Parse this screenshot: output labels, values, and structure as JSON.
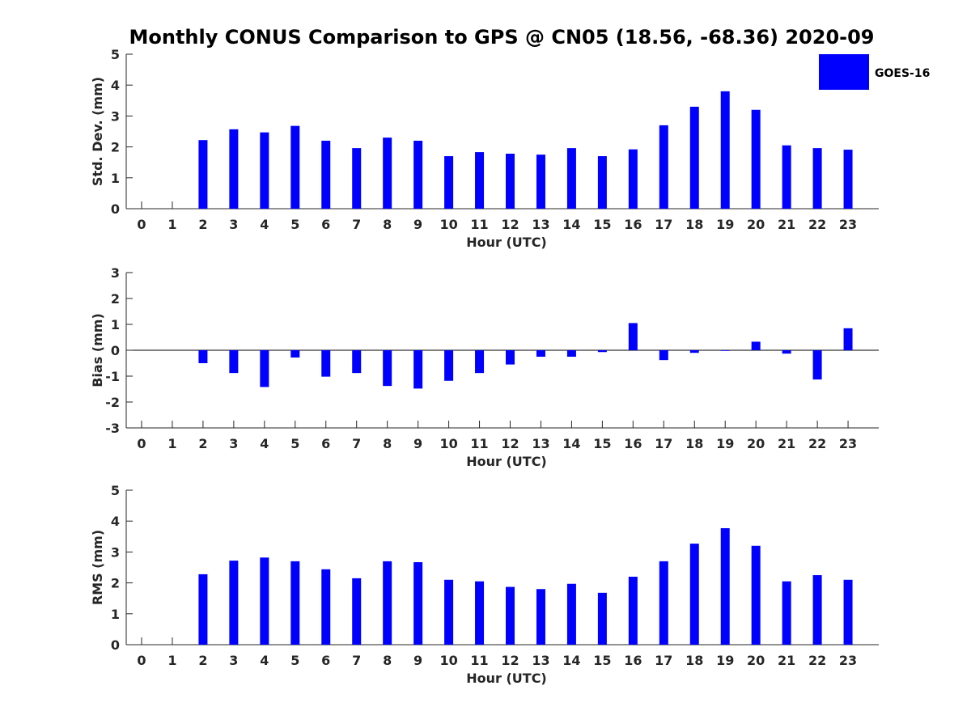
{
  "figure": {
    "title": "Monthly CONUS Comparison to GPS @ CN05 (18.56, -68.36) 2020-09",
    "legend": {
      "label": "GOES-16",
      "color": "#0000ff",
      "placement": "top-right"
    }
  },
  "chart_data": [
    {
      "type": "bar",
      "title": "Monthly CONUS Comparison to GPS @ CN05 (18.56, -68.36) 2020-09",
      "xlabel": "Hour (UTC)",
      "ylabel": "Std. Dev. (mm)",
      "ylim": [
        0,
        5
      ],
      "yticks": [
        0,
        1,
        2,
        3,
        4,
        5
      ],
      "categories": [
        0,
        1,
        2,
        3,
        4,
        5,
        6,
        7,
        8,
        9,
        10,
        11,
        12,
        13,
        14,
        15,
        16,
        17,
        18,
        19,
        20,
        21,
        22,
        23
      ],
      "series": [
        {
          "name": "GOES-16",
          "color": "#0000ff",
          "values": [
            null,
            null,
            2.22,
            2.57,
            2.47,
            2.68,
            2.2,
            1.96,
            2.3,
            2.2,
            1.7,
            1.83,
            1.78,
            1.75,
            1.96,
            1.7,
            1.92,
            2.7,
            3.3,
            3.8,
            3.2,
            2.05,
            1.96,
            1.91
          ]
        }
      ],
      "legend": "top-right"
    },
    {
      "type": "bar",
      "xlabel": "Hour (UTC)",
      "ylabel": "Bias (mm)",
      "ylim": [
        -3,
        3
      ],
      "yticks": [
        -3,
        -2,
        -1,
        0,
        1,
        2,
        3
      ],
      "categories": [
        0,
        1,
        2,
        3,
        4,
        5,
        6,
        7,
        8,
        9,
        10,
        11,
        12,
        13,
        14,
        15,
        16,
        17,
        18,
        19,
        20,
        21,
        22,
        23
      ],
      "series": [
        {
          "name": "GOES-16",
          "color": "#0000ff",
          "values": [
            null,
            null,
            -0.5,
            -0.88,
            -1.42,
            -0.28,
            -1.02,
            -0.88,
            -1.38,
            -1.48,
            -1.18,
            -0.88,
            -0.55,
            -0.25,
            -0.25,
            -0.07,
            1.05,
            -0.38,
            -0.1,
            0.0,
            0.33,
            -0.13,
            -1.13,
            0.85
          ]
        }
      ]
    },
    {
      "type": "bar",
      "xlabel": "Hour (UTC)",
      "ylabel": "RMS (mm)",
      "ylim": [
        0,
        5
      ],
      "yticks": [
        0,
        1,
        2,
        3,
        4,
        5
      ],
      "categories": [
        0,
        1,
        2,
        3,
        4,
        5,
        6,
        7,
        8,
        9,
        10,
        11,
        12,
        13,
        14,
        15,
        16,
        17,
        18,
        19,
        20,
        21,
        22,
        23
      ],
      "series": [
        {
          "name": "GOES-16",
          "color": "#0000ff",
          "values": [
            null,
            null,
            2.28,
            2.72,
            2.82,
            2.7,
            2.44,
            2.15,
            2.7,
            2.67,
            2.1,
            2.05,
            1.87,
            1.8,
            1.97,
            1.68,
            2.2,
            2.7,
            3.27,
            3.77,
            3.2,
            2.05,
            2.25,
            2.1
          ]
        }
      ]
    }
  ]
}
